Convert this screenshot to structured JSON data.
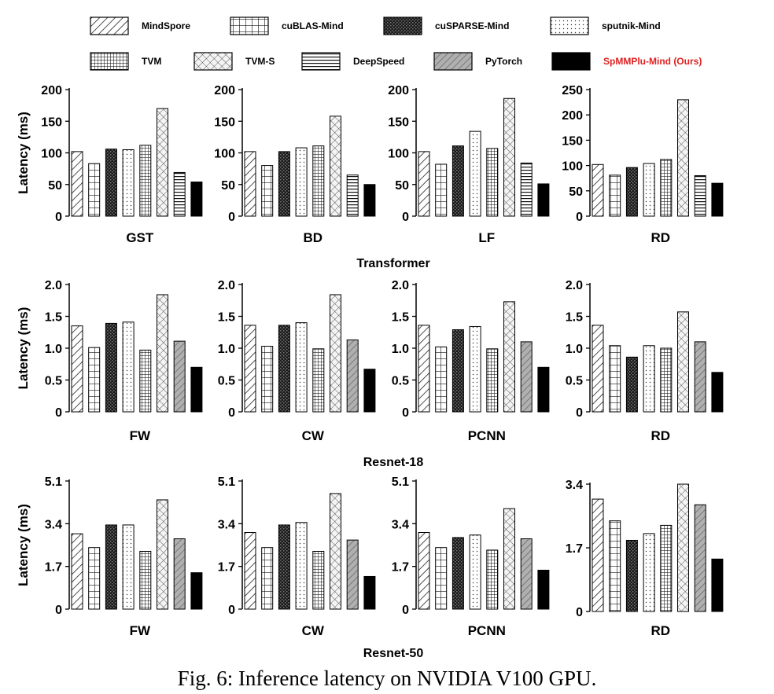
{
  "legend": [
    {
      "name": "MindSpore",
      "pattern": "diag",
      "color": "#000000"
    },
    {
      "name": "cuBLAS-Mind",
      "pattern": "grid",
      "color": "#000000"
    },
    {
      "name": "cuSPARSE-Mind",
      "pattern": "dense",
      "color": "#000000"
    },
    {
      "name": "sputnik-Mind",
      "pattern": "dots",
      "color": "#000000"
    },
    {
      "name": "TVM",
      "pattern": "finegrid",
      "color": "#000000"
    },
    {
      "name": "TVM-S",
      "pattern": "cross",
      "color": "#000000"
    },
    {
      "name": "DeepSpeed",
      "pattern": "hlines",
      "color": "#000000"
    },
    {
      "name": "PyTorch",
      "pattern": "graydiag",
      "color": "#000000"
    },
    {
      "name": "SpMMPlu-Mind (Ours)",
      "pattern": "solid",
      "color": "#e02020"
    }
  ],
  "rows": [
    {
      "group_title": "Transformer",
      "ylabel": "Latency (ms)"
    },
    {
      "group_title": "Resnet-18",
      "ylabel": "Latency (ms)"
    },
    {
      "group_title": "Resnet-50",
      "ylabel": "Latency (ms)"
    }
  ],
  "caption": "Fig. 6: Inference latency on NVIDIA V100 GPU.",
  "chart_data": [
    {
      "type": "bar",
      "group": "Transformer",
      "category": "GST",
      "ylabel": "Latency (ms)",
      "ylim": [
        0,
        200
      ],
      "yticks": [
        "0",
        "50",
        "100",
        "150",
        "200"
      ],
      "series": [
        "MindSpore",
        "cuBLAS-Mind",
        "cuSPARSE-Mind",
        "sputnik-Mind",
        "TVM",
        "TVM-S",
        "DeepSpeed",
        "SpMMPlu-Mind (Ours)"
      ],
      "values": [
        102,
        83,
        106,
        105,
        112,
        170,
        69,
        54
      ]
    },
    {
      "type": "bar",
      "group": "Transformer",
      "category": "BD",
      "ylabel": "",
      "ylim": [
        0,
        200
      ],
      "yticks": [
        "0",
        "50",
        "100",
        "150",
        "200"
      ],
      "series": [
        "MindSpore",
        "cuBLAS-Mind",
        "cuSPARSE-Mind",
        "sputnik-Mind",
        "TVM",
        "TVM-S",
        "DeepSpeed",
        "SpMMPlu-Mind (Ours)"
      ],
      "values": [
        102,
        80,
        102,
        108,
        111,
        158,
        65,
        50
      ]
    },
    {
      "type": "bar",
      "group": "Transformer",
      "category": "LF",
      "ylabel": "",
      "ylim": [
        0,
        200
      ],
      "yticks": [
        "0",
        "50",
        "100",
        "150",
        "200"
      ],
      "series": [
        "MindSpore",
        "cuBLAS-Mind",
        "cuSPARSE-Mind",
        "sputnik-Mind",
        "TVM",
        "TVM-S",
        "DeepSpeed",
        "SpMMPlu-Mind (Ours)"
      ],
      "values": [
        102,
        82,
        111,
        134,
        107,
        186,
        84,
        51
      ]
    },
    {
      "type": "bar",
      "group": "Transformer",
      "category": "RD",
      "ylabel": "",
      "ylim": [
        0,
        250
      ],
      "yticks": [
        "0",
        "50",
        "100",
        "150",
        "200",
        "250"
      ],
      "series": [
        "MindSpore",
        "cuBLAS-Mind",
        "cuSPARSE-Mind",
        "sputnik-Mind",
        "TVM",
        "TVM-S",
        "DeepSpeed",
        "SpMMPlu-Mind (Ours)"
      ],
      "values": [
        102,
        81,
        96,
        104,
        112,
        230,
        80,
        65
      ]
    },
    {
      "type": "bar",
      "group": "Resnet-18",
      "category": "FW",
      "ylabel": "Latency (ms)",
      "ylim": [
        0,
        2.0
      ],
      "yticks": [
        "0",
        "0.5",
        "1.0",
        "1.5",
        "2.0"
      ],
      "series": [
        "MindSpore",
        "cuBLAS-Mind",
        "cuSPARSE-Mind",
        "sputnik-Mind",
        "TVM",
        "TVM-S",
        "PyTorch",
        "SpMMPlu-Mind (Ours)"
      ],
      "values": [
        1.35,
        1.01,
        1.39,
        1.41,
        0.97,
        1.84,
        1.11,
        0.7
      ]
    },
    {
      "type": "bar",
      "group": "Resnet-18",
      "category": "CW",
      "ylabel": "",
      "ylim": [
        0,
        2.0
      ],
      "yticks": [
        "0",
        "0.5",
        "1.0",
        "1.5",
        "2.0"
      ],
      "series": [
        "MindSpore",
        "cuBLAS-Mind",
        "cuSPARSE-Mind",
        "sputnik-Mind",
        "TVM",
        "TVM-S",
        "PyTorch",
        "SpMMPlu-Mind (Ours)"
      ],
      "values": [
        1.36,
        1.03,
        1.36,
        1.4,
        0.99,
        1.84,
        1.13,
        0.67
      ]
    },
    {
      "type": "bar",
      "group": "Resnet-18",
      "category": "PCNN",
      "ylabel": "",
      "ylim": [
        0,
        2.0
      ],
      "yticks": [
        "0",
        "0.5",
        "1.0",
        "1.5",
        "2.0"
      ],
      "series": [
        "MindSpore",
        "cuBLAS-Mind",
        "cuSPARSE-Mind",
        "sputnik-Mind",
        "TVM",
        "TVM-S",
        "PyTorch",
        "SpMMPlu-Mind (Ours)"
      ],
      "values": [
        1.36,
        1.02,
        1.29,
        1.34,
        0.99,
        1.73,
        1.1,
        0.7
      ]
    },
    {
      "type": "bar",
      "group": "Resnet-18",
      "category": "RD",
      "ylabel": "",
      "ylim": [
        0,
        2.0
      ],
      "yticks": [
        "0",
        "0.5",
        "1.0",
        "1.5",
        "2.0"
      ],
      "series": [
        "MindSpore",
        "cuBLAS-Mind",
        "cuSPARSE-Mind",
        "sputnik-Mind",
        "TVM",
        "TVM-S",
        "PyTorch",
        "SpMMPlu-Mind (Ours)"
      ],
      "values": [
        1.36,
        1.04,
        0.86,
        1.04,
        1.0,
        1.57,
        1.1,
        0.62
      ]
    },
    {
      "type": "bar",
      "group": "Resnet-50",
      "category": "FW",
      "ylabel": "Latency (ms)",
      "ylim": [
        0,
        5.1
      ],
      "yticks": [
        "0",
        "1.7",
        "3.4",
        "5.1"
      ],
      "series": [
        "MindSpore",
        "cuBLAS-Mind",
        "cuSPARSE-Mind",
        "sputnik-Mind",
        "TVM",
        "TVM-S",
        "PyTorch",
        "SpMMPlu-Mind (Ours)"
      ],
      "values": [
        3.0,
        2.45,
        3.35,
        3.35,
        2.3,
        4.35,
        2.8,
        1.45
      ]
    },
    {
      "type": "bar",
      "group": "Resnet-50",
      "category": "CW",
      "ylabel": "",
      "ylim": [
        0,
        5.1
      ],
      "yticks": [
        "0",
        "1.7",
        "3.4",
        "5.1"
      ],
      "series": [
        "MindSpore",
        "cuBLAS-Mind",
        "cuSPARSE-Mind",
        "sputnik-Mind",
        "TVM",
        "TVM-S",
        "PyTorch",
        "SpMMPlu-Mind (Ours)"
      ],
      "values": [
        3.05,
        2.45,
        3.35,
        3.45,
        2.3,
        4.6,
        2.75,
        1.3
      ]
    },
    {
      "type": "bar",
      "group": "Resnet-50",
      "category": "PCNN",
      "ylabel": "",
      "ylim": [
        0,
        5.1
      ],
      "yticks": [
        "0",
        "1.7",
        "3.4",
        "5.1"
      ],
      "series": [
        "MindSpore",
        "cuBLAS-Mind",
        "cuSPARSE-Mind",
        "sputnik-Mind",
        "TVM",
        "TVM-S",
        "PyTorch",
        "SpMMPlu-Mind (Ours)"
      ],
      "values": [
        3.05,
        2.45,
        2.85,
        2.95,
        2.35,
        4.0,
        2.8,
        1.55
      ]
    },
    {
      "type": "bar",
      "group": "Resnet-50",
      "category": "RD",
      "ylabel": "",
      "ylim": [
        0,
        3.4
      ],
      "yticks": [
        "0",
        "1.7",
        "3.4"
      ],
      "series": [
        "MindSpore",
        "cuBLAS-Mind",
        "cuSPARSE-Mind",
        "sputnik-Mind",
        "TVM",
        "TVM-S",
        "PyTorch",
        "SpMMPlu-Mind (Ours)"
      ],
      "values": [
        3.0,
        2.42,
        1.9,
        2.08,
        2.3,
        3.4,
        2.85,
        1.4
      ]
    }
  ]
}
